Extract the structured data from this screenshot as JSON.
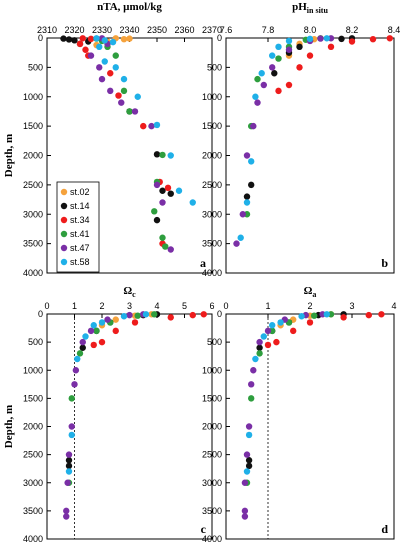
{
  "figure": {
    "stations": [
      {
        "name": "st.02",
        "color": "#f5a23c"
      },
      {
        "name": "st.14",
        "color": "#111111"
      },
      {
        "name": "st.34",
        "color": "#ee1c1c"
      },
      {
        "name": "st.41",
        "color": "#2e9e3e"
      },
      {
        "name": "st.47",
        "color": "#7a2fa6"
      },
      {
        "name": "st.58",
        "color": "#1fb0e8"
      }
    ]
  },
  "chart_data": [
    {
      "type": "scatter",
      "panel": "a",
      "title": "nTA, µmol/kg",
      "ylabel": "Depth, m",
      "xlim": [
        2310,
        2370
      ],
      "ylim": [
        0,
        4000
      ],
      "xticks": [
        "2310",
        "2320",
        "2330",
        "2340",
        "2350",
        "2360",
        "2370"
      ],
      "yticks": [
        "0",
        "500",
        "1000",
        "1500",
        "2000",
        "2500",
        "3000",
        "3500",
        "4000"
      ],
      "y_inverted": true,
      "legend": "bottom-left",
      "series": [
        {
          "name": "st.02",
          "color": "#f5a23c",
          "points": [
            [
              2335,
              5
            ],
            [
              2338,
              20
            ],
            [
              2340,
              10
            ],
            [
              2330,
              30
            ],
            [
              2332,
              60
            ],
            [
              2328,
              120
            ]
          ]
        },
        {
          "name": "st.14",
          "color": "#111111",
          "points": [
            [
              2316,
              10
            ],
            [
              2318,
              25
            ],
            [
              2320,
              40
            ],
            [
              2325,
              60
            ],
            [
              2322,
              100
            ],
            [
              2340,
              1250
            ],
            [
              2350,
              1980
            ],
            [
              2352,
              2600
            ],
            [
              2355,
              2650
            ],
            [
              2350,
              3100
            ]
          ]
        },
        {
          "name": "st.34",
          "color": "#ee1c1c",
          "points": [
            [
              2323,
              5
            ],
            [
              2326,
              15
            ],
            [
              2322,
              100
            ],
            [
              2324,
              200
            ],
            [
              2325,
              300
            ],
            [
              2333,
              600
            ],
            [
              2336,
              980
            ],
            [
              2345,
              1500
            ],
            [
              2351,
              2450
            ],
            [
              2354,
              2550
            ],
            [
              2352,
              3500
            ]
          ]
        },
        {
          "name": "st.41",
          "color": "#2e9e3e",
          "points": [
            [
              2328,
              10
            ],
            [
              2330,
              50
            ],
            [
              2332,
              150
            ],
            [
              2335,
              300
            ],
            [
              2338,
              900
            ],
            [
              2340,
              1250
            ],
            [
              2352,
              1990
            ],
            [
              2350,
              2450
            ],
            [
              2349,
              2950
            ],
            [
              2352,
              3400
            ],
            [
              2353,
              3550
            ]
          ]
        },
        {
          "name": "st.47",
          "color": "#7a2fa6",
          "points": [
            [
              2330,
              5
            ],
            [
              2332,
              100
            ],
            [
              2326,
              300
            ],
            [
              2329,
              500
            ],
            [
              2330,
              700
            ],
            [
              2333,
              900
            ],
            [
              2337,
              1100
            ],
            [
              2342,
              1250
            ],
            [
              2348,
              1500
            ],
            [
              2350,
              2500
            ],
            [
              2352,
              2800
            ],
            [
              2355,
              3600
            ]
          ]
        },
        {
          "name": "st.58",
          "color": "#1fb0e8",
          "points": [
            [
              2328,
              5
            ],
            [
              2331,
              40
            ],
            [
              2334,
              70
            ],
            [
              2329,
              150
            ],
            [
              2331,
              400
            ],
            [
              2335,
              500
            ],
            [
              2338,
              700
            ],
            [
              2343,
              1000
            ],
            [
              2350,
              1480
            ],
            [
              2355,
              2000
            ],
            [
              2358,
              2600
            ],
            [
              2363,
              2800
            ]
          ]
        }
      ]
    },
    {
      "type": "scatter",
      "panel": "b",
      "title": "pH",
      "title_subscript": "in situ",
      "xlim": [
        7.6,
        8.4
      ],
      "ylim": [
        0,
        4000
      ],
      "xticks": [
        "7.6",
        "7.8",
        "8.0",
        "8.2",
        "8.4"
      ],
      "yticks": [
        "0",
        "500",
        "1000",
        "1500",
        "2000",
        "2500",
        "3000",
        "3500",
        "4000"
      ],
      "y_inverted": true,
      "series": [
        {
          "name": "st.02",
          "color": "#f5a23c",
          "points": [
            [
              8.05,
              5
            ],
            [
              8.02,
              20
            ],
            [
              7.95,
              100
            ],
            [
              7.9,
              300
            ]
          ]
        },
        {
          "name": "st.14",
          "color": "#111111",
          "points": [
            [
              8.2,
              5
            ],
            [
              8.15,
              15
            ],
            [
              8.0,
              40
            ],
            [
              7.95,
              150
            ],
            [
              7.9,
              250
            ],
            [
              7.83,
              600
            ],
            [
              7.72,
              2500
            ],
            [
              7.7,
              2700
            ]
          ]
        },
        {
          "name": "st.34",
          "color": "#ee1c1c",
          "points": [
            [
              8.38,
              5
            ],
            [
              8.3,
              20
            ],
            [
              8.2,
              60
            ],
            [
              8.1,
              150
            ],
            [
              8.0,
              300
            ],
            [
              7.95,
              500
            ],
            [
              7.9,
              800
            ],
            [
              7.85,
              900
            ]
          ]
        },
        {
          "name": "st.41",
          "color": "#2e9e3e",
          "points": [
            [
              8.05,
              5
            ],
            [
              7.98,
              30
            ],
            [
              7.9,
              150
            ],
            [
              7.85,
              350
            ],
            [
              7.75,
              700
            ],
            [
              7.72,
              1500
            ],
            [
              7.7,
              3000
            ]
          ]
        },
        {
          "name": "st.47",
          "color": "#7a2fa6",
          "points": [
            [
              8.1,
              5
            ],
            [
              8.05,
              10
            ],
            [
              8.0,
              50
            ],
            [
              7.9,
              200
            ],
            [
              7.82,
              500
            ],
            [
              7.78,
              800
            ],
            [
              7.75,
              1100
            ],
            [
              7.73,
              1500
            ],
            [
              7.7,
              2000
            ],
            [
              7.68,
              3000
            ],
            [
              7.65,
              3500
            ]
          ]
        },
        {
          "name": "st.58",
          "color": "#1fb0e8",
          "points": [
            [
              8.08,
              5
            ],
            [
              8.0,
              15
            ],
            [
              7.9,
              50
            ],
            [
              7.85,
              150
            ],
            [
              7.82,
              300
            ],
            [
              7.77,
              600
            ],
            [
              7.74,
              1000
            ],
            [
              7.72,
              2100
            ],
            [
              7.7,
              2800
            ],
            [
              7.67,
              3400
            ]
          ]
        }
      ]
    },
    {
      "type": "scatter",
      "panel": "c",
      "title": "Ω",
      "title_subscript": "c",
      "ylabel": "Depth, m",
      "xlim": [
        0,
        6
      ],
      "ylim": [
        0,
        4000
      ],
      "xticks": [
        "0",
        "1",
        "2",
        "3",
        "4",
        "5",
        "6"
      ],
      "yticks": [
        "0",
        "500",
        "1000",
        "1500",
        "2000",
        "2500",
        "3000",
        "3500",
        "4000"
      ],
      "y_inverted": true,
      "reference_line_x": 1,
      "series": [
        {
          "name": "st.02",
          "color": "#f5a23c",
          "points": [
            [
              3.8,
              5
            ],
            [
              3.2,
              30
            ],
            [
              2.5,
              100
            ],
            [
              2.0,
              200
            ]
          ]
        },
        {
          "name": "st.14",
          "color": "#111111",
          "points": [
            [
              4.0,
              5
            ],
            [
              3.5,
              20
            ],
            [
              2.3,
              150
            ],
            [
              1.8,
              300
            ],
            [
              1.3,
              600
            ],
            [
              0.8,
              2600
            ],
            [
              0.8,
              2700
            ]
          ]
        },
        {
          "name": "st.34",
          "color": "#ee1c1c",
          "points": [
            [
              5.7,
              5
            ],
            [
              5.3,
              20
            ],
            [
              4.5,
              60
            ],
            [
              3.2,
              150
            ],
            [
              2.5,
              300
            ],
            [
              2.0,
              500
            ],
            [
              1.7,
              550
            ]
          ]
        },
        {
          "name": "st.41",
          "color": "#2e9e3e",
          "points": [
            [
              3.9,
              5
            ],
            [
              3.3,
              30
            ],
            [
              2.3,
              150
            ],
            [
              1.8,
              300
            ],
            [
              1.2,
              700
            ],
            [
              0.9,
              1500
            ],
            [
              0.8,
              3000
            ]
          ]
        },
        {
          "name": "st.47",
          "color": "#7a2fa6",
          "points": [
            [
              3.5,
              5
            ],
            [
              3.0,
              20
            ],
            [
              2.2,
              100
            ],
            [
              1.6,
              300
            ],
            [
              1.3,
              500
            ],
            [
              1.05,
              1000
            ],
            [
              1.0,
              1250
            ],
            [
              0.9,
              2000
            ],
            [
              0.8,
              2500
            ],
            [
              0.75,
              3000
            ],
            [
              0.7,
              3500
            ],
            [
              0.7,
              3600
            ]
          ]
        },
        {
          "name": "st.58",
          "color": "#1fb0e8",
          "points": [
            [
              3.6,
              5
            ],
            [
              2.8,
              40
            ],
            [
              2.0,
              150
            ],
            [
              1.7,
              200
            ],
            [
              1.4,
              400
            ],
            [
              1.1,
              800
            ],
            [
              0.9,
              2150
            ],
            [
              0.8,
              2800
            ]
          ]
        }
      ]
    },
    {
      "type": "scatter",
      "panel": "d",
      "title": "Ω",
      "title_subscript": "a",
      "xlim": [
        0,
        4
      ],
      "ylim": [
        0,
        4000
      ],
      "xticks": [
        "0",
        "1",
        "2",
        "3",
        "4"
      ],
      "yticks": [
        "0",
        "500",
        "1000",
        "1500",
        "2000",
        "2500",
        "3000",
        "3500",
        "4000"
      ],
      "y_inverted": true,
      "reference_line_x": 1,
      "series": [
        {
          "name": "st.02",
          "color": "#f5a23c",
          "points": [
            [
              2.5,
              5
            ],
            [
              2.0,
              30
            ],
            [
              1.6,
              100
            ],
            [
              1.3,
              200
            ]
          ]
        },
        {
          "name": "st.14",
          "color": "#111111",
          "points": [
            [
              2.8,
              5
            ],
            [
              2.2,
              20
            ],
            [
              1.5,
              150
            ],
            [
              1.1,
              300
            ],
            [
              0.8,
              600
            ],
            [
              0.55,
              2600
            ],
            [
              0.55,
              2700
            ]
          ]
        },
        {
          "name": "st.34",
          "color": "#ee1c1c",
          "points": [
            [
              3.7,
              5
            ],
            [
              3.4,
              20
            ],
            [
              2.8,
              60
            ],
            [
              2.0,
              150
            ],
            [
              1.6,
              300
            ],
            [
              1.2,
              500
            ],
            [
              1.0,
              550
            ]
          ]
        },
        {
          "name": "st.41",
          "color": "#2e9e3e",
          "points": [
            [
              2.5,
              5
            ],
            [
              2.1,
              30
            ],
            [
              1.5,
              150
            ],
            [
              1.1,
              300
            ],
            [
              0.8,
              700
            ],
            [
              0.6,
              1500
            ],
            [
              0.5,
              3000
            ]
          ]
        },
        {
          "name": "st.47",
          "color": "#7a2fa6",
          "points": [
            [
              2.3,
              5
            ],
            [
              1.9,
              20
            ],
            [
              1.4,
              100
            ],
            [
              1.0,
              300
            ],
            [
              0.8,
              500
            ],
            [
              0.65,
              1000
            ],
            [
              0.6,
              1250
            ],
            [
              0.55,
              2000
            ],
            [
              0.5,
              2500
            ],
            [
              0.45,
              3000
            ],
            [
              0.45,
              3500
            ],
            [
              0.45,
              3600
            ]
          ]
        },
        {
          "name": "st.58",
          "color": "#1fb0e8",
          "points": [
            [
              2.4,
              5
            ],
            [
              1.8,
              40
            ],
            [
              1.3,
              150
            ],
            [
              1.1,
              200
            ],
            [
              0.9,
              400
            ],
            [
              0.7,
              800
            ],
            [
              0.55,
              2150
            ],
            [
              0.5,
              2800
            ]
          ]
        }
      ]
    }
  ]
}
